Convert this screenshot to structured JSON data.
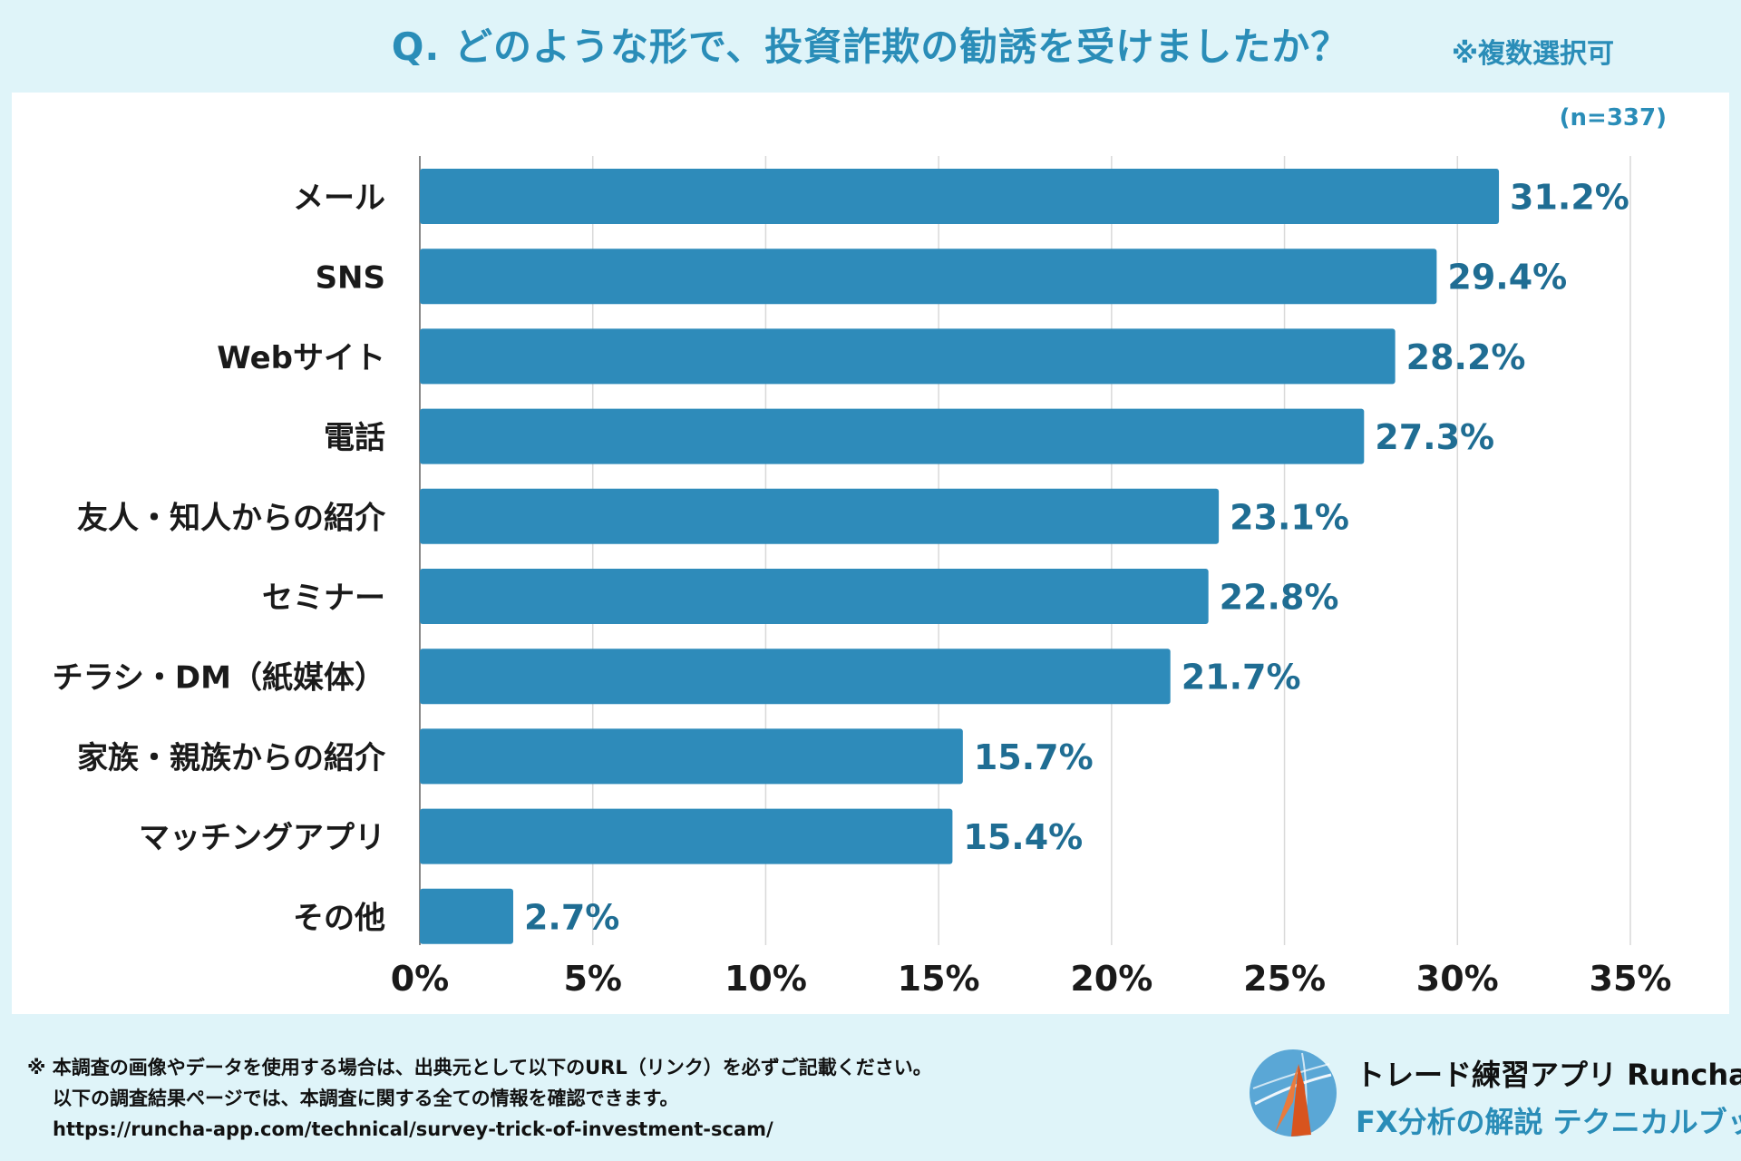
{
  "header": {
    "question": "Q. どのような形で、投資詐欺の勧誘を受けましたか？",
    "note": "※複数選択可"
  },
  "chart_data": {
    "type": "bar",
    "orientation": "horizontal",
    "sample_size_label": "(n=337)",
    "categories": [
      "メール",
      "SNS",
      "Webサイト",
      "電話",
      "友人・知人からの紹介",
      "セミナー",
      "チラシ・DM（紙媒体）",
      "家族・親族からの紹介",
      "マッチングアプリ",
      "その他"
    ],
    "values": [
      31.2,
      29.4,
      28.2,
      27.3,
      23.1,
      22.8,
      21.7,
      15.7,
      15.4,
      2.7
    ],
    "value_labels": [
      "31.2%",
      "29.4%",
      "28.2%",
      "27.3%",
      "23.1%",
      "22.8%",
      "21.7%",
      "15.7%",
      "15.4%",
      "2.7%"
    ],
    "xlim": [
      0,
      35
    ],
    "xticks": [
      0,
      5,
      10,
      15,
      20,
      25,
      30,
      35
    ],
    "xtick_labels": [
      "0%",
      "5%",
      "10%",
      "15%",
      "20%",
      "25%",
      "30%",
      "35%"
    ],
    "bar_color": "#2e8bba",
    "label_color": "#1f6d93",
    "grid": true
  },
  "footer": {
    "line1": "※ 本調査の画像やデータを使用する場合は、出典元として以下のURL（リンク）を必ずご記載ください。",
    "line2": "以下の調査結果ページでは、本調査に関する全ての情報を確認できます。",
    "url": "https://runcha-app.com/technical/survey-trick-of-investment-scam/"
  },
  "brand": {
    "app_name": "トレード練習アプリ Runcha",
    "tagline": "FX分析の解説 テクニカルブック",
    "logo_icon": "runcha-logo-icon"
  }
}
